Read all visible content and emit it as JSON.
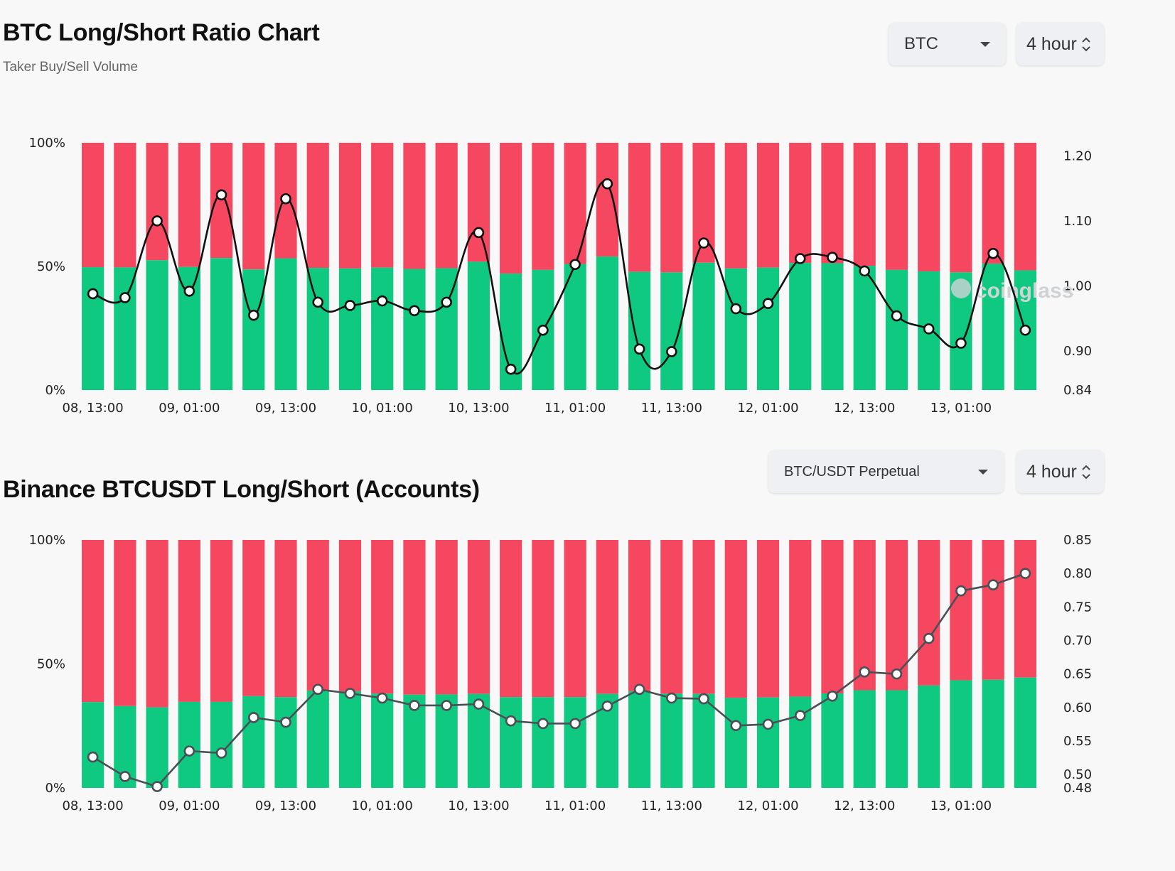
{
  "colors": {
    "long": "#10c981",
    "short": "#f5475f",
    "line_top": "#111111",
    "line_bottom": "#4a4f55"
  },
  "panels": [
    {
      "title": "BTC Long/Short Ratio Chart",
      "subtitle": "Taker Buy/Sell Volume",
      "select": {
        "value": "BTC",
        "icon": "chevron-down-icon"
      },
      "interval": {
        "value": "4 hour",
        "icon": "updown-arrows-icon"
      }
    },
    {
      "title": "Binance BTCUSDT Long/Short (Accounts)",
      "select": {
        "value": "BTC/USDT Perpetual",
        "icon": "chevron-down-icon"
      },
      "interval": {
        "value": "4 hour",
        "icon": "updown-arrows-icon"
      }
    }
  ],
  "watermark": "coinglass",
  "chart_data": [
    {
      "type": "bar",
      "stacked_percent": true,
      "x_ticks": [
        "08, 13:00",
        "09, 01:00",
        "09, 13:00",
        "10, 01:00",
        "10, 13:00",
        "11, 01:00",
        "11, 13:00",
        "12, 01:00",
        "12, 13:00",
        "13, 01:00"
      ],
      "y_left_ticks": [
        "100%",
        "50%",
        "0%"
      ],
      "y_right_ticks": [
        "1.20",
        "1.10",
        "1.00",
        "0.90",
        "0.84"
      ],
      "y_left_range": [
        0,
        100
      ],
      "y_right_range": [
        0.84,
        1.22
      ],
      "long_pct": [
        49.7,
        49.6,
        52.5,
        49.8,
        53.4,
        48.8,
        53.3,
        49.4,
        49.2,
        49.5,
        49.0,
        49.3,
        51.9,
        47.1,
        48.6,
        51.0,
        54.0,
        47.8,
        47.6,
        51.5,
        49.2,
        49.5,
        51.4,
        51.3,
        50.2,
        48.6,
        48.0,
        47.6,
        51.1,
        48.4
      ],
      "series": [
        {
          "name": "Long/Short Ratio",
          "values": [
            0.988,
            0.982,
            1.1,
            0.992,
            1.14,
            0.955,
            1.134,
            0.975,
            0.97,
            0.977,
            0.962,
            0.975,
            1.082,
            0.872,
            0.932,
            1.033,
            1.157,
            0.903,
            0.899,
            1.066,
            0.965,
            0.973,
            1.042,
            1.044,
            1.023,
            0.954,
            0.934,
            0.912,
            1.05,
            0.932
          ]
        }
      ]
    },
    {
      "type": "bar",
      "stacked_percent": true,
      "x_ticks": [
        "08, 13:00",
        "09, 01:00",
        "09, 13:00",
        "10, 01:00",
        "10, 13:00",
        "11, 01:00",
        "11, 13:00",
        "12, 01:00",
        "12, 13:00",
        "13, 01:00"
      ],
      "y_left_ticks": [
        "100%",
        "50%",
        "0%"
      ],
      "y_right_ticks": [
        "0.85",
        "0.80",
        "0.75",
        "0.70",
        "0.65",
        "0.60",
        "0.55",
        "0.50",
        "0.48"
      ],
      "y_left_range": [
        0,
        100
      ],
      "y_right_range": [
        0.48,
        0.85
      ],
      "long_pct": [
        34.6,
        33.0,
        32.5,
        34.7,
        34.7,
        37.0,
        36.6,
        39.2,
        39.0,
        38.0,
        37.6,
        37.7,
        37.9,
        36.6,
        36.6,
        36.6,
        37.9,
        39.0,
        38.0,
        37.9,
        36.3,
        36.5,
        36.8,
        38.1,
        39.4,
        39.4,
        41.3,
        43.4,
        43.6,
        44.5
      ],
      "series": [
        {
          "name": "Long/Short Ratio",
          "values": [
            0.526,
            0.497,
            0.482,
            0.535,
            0.532,
            0.585,
            0.578,
            0.627,
            0.621,
            0.614,
            0.603,
            0.603,
            0.605,
            0.58,
            0.576,
            0.576,
            0.602,
            0.627,
            0.614,
            0.613,
            0.573,
            0.575,
            0.588,
            0.617,
            0.653,
            0.65,
            0.703,
            0.774,
            0.783,
            0.8
          ]
        }
      ]
    }
  ]
}
